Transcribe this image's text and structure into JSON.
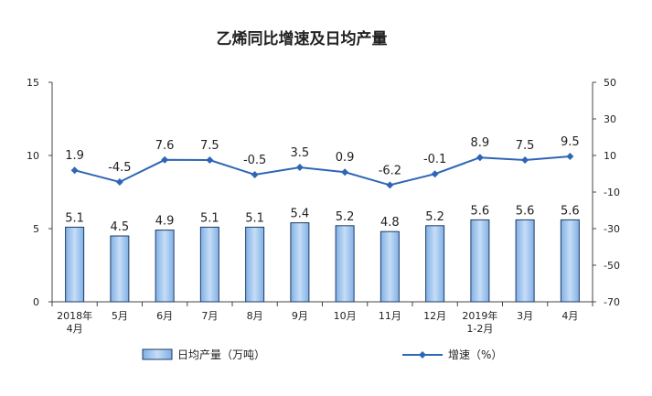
{
  "chart_data": {
    "type": "bar+line",
    "title": "乙烯同比增速及日均产量",
    "categories": [
      [
        "2018年",
        "4月"
      ],
      [
        "5月"
      ],
      [
        "6月"
      ],
      [
        "7月"
      ],
      [
        "8月"
      ],
      [
        "9月"
      ],
      [
        "10月"
      ],
      [
        "11月"
      ],
      [
        "12月"
      ],
      [
        "2019年",
        "1-2月"
      ],
      [
        "3月"
      ],
      [
        "4月"
      ]
    ],
    "series": [
      {
        "name": "日均产量（万吨）",
        "type": "bar",
        "axis": "left",
        "values": [
          5.1,
          4.5,
          4.9,
          5.1,
          5.1,
          5.4,
          5.2,
          4.8,
          5.2,
          5.6,
          5.6,
          5.6
        ],
        "labels": [
          "5.1",
          "4.5",
          "4.9",
          "5.1",
          "5.1",
          "5.4",
          "5.2",
          "4.8",
          "5.2",
          "5.6",
          "5.6",
          "5.6"
        ]
      },
      {
        "name": "增速（%）",
        "type": "line",
        "axis": "right",
        "values": [
          1.9,
          -4.5,
          7.6,
          7.5,
          -0.5,
          3.5,
          0.9,
          -6.2,
          -0.1,
          8.9,
          7.5,
          9.5
        ],
        "labels": [
          "1.9",
          "-4.5",
          "7.6",
          "7.5",
          "-0.5",
          "3.5",
          "0.9",
          "-6.2",
          "-0.1",
          "8.9",
          "7.5",
          "9.5"
        ]
      }
    ],
    "y_left": {
      "min": 0,
      "max": 15,
      "ticks": [
        "0",
        "5",
        "10",
        "15"
      ]
    },
    "y_right": {
      "min": -70,
      "max": 50,
      "ticks": [
        "50",
        "30",
        "10",
        "-10",
        "-30",
        "-50",
        "-70"
      ]
    },
    "legend_position": "bottom",
    "colors": {
      "bar_fill": "#9dc3ee",
      "bar_stroke": "#1f3b66",
      "line": "#2e66b5",
      "axis": "#444444"
    }
  }
}
